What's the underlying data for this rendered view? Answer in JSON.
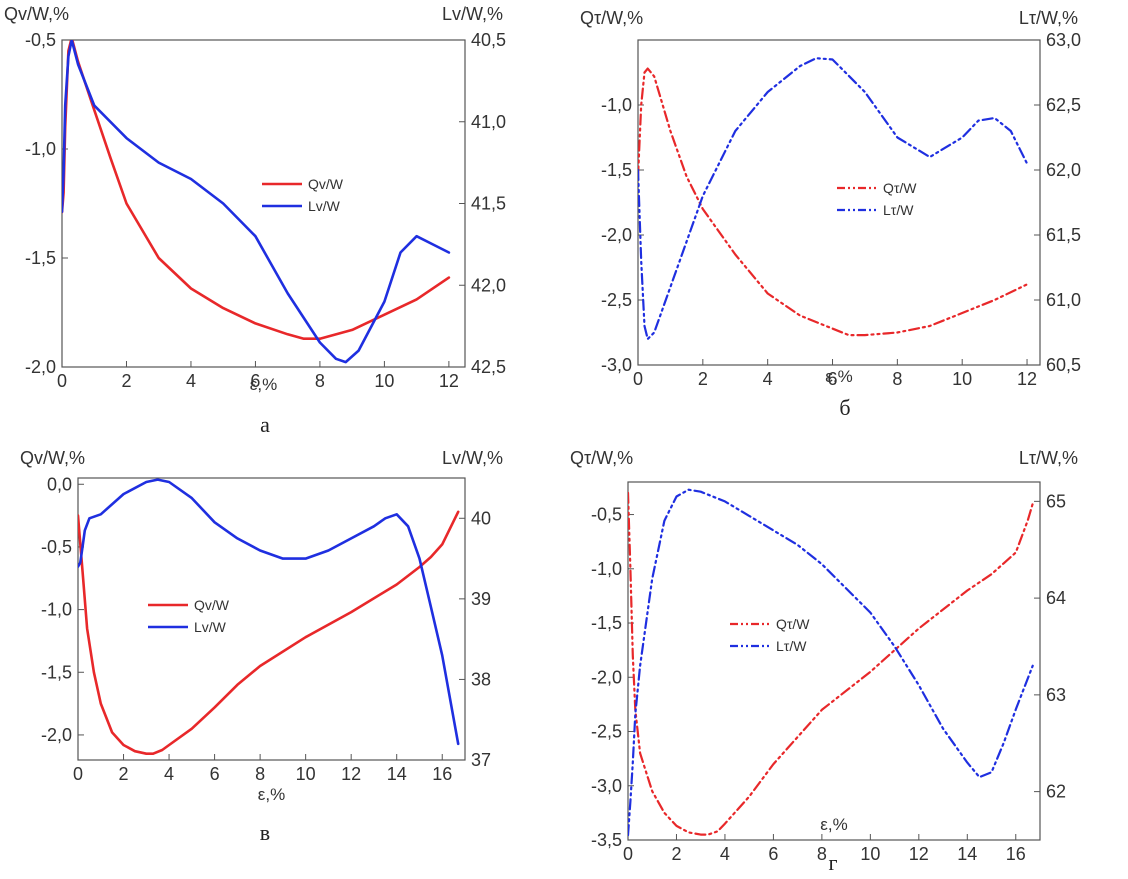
{
  "chart_data": [
    {
      "type": "line",
      "panel_label": "а",
      "xlabel": "ε,%",
      "ylabel_left": "Qv/W,%",
      "ylabel_right": "Lv/W,%",
      "xlim": [
        0,
        12.5
      ],
      "ylim_left": [
        -2.0,
        -0.5
      ],
      "ylim_right": [
        42.5,
        40.5
      ],
      "x_ticks": [
        0,
        2,
        4,
        6,
        8,
        10,
        12
      ],
      "x_tick_labels": [
        "0",
        "2",
        "4",
        "6",
        "8",
        "10",
        "12"
      ],
      "y_left_ticks": [
        -0.5,
        -1.0,
        -1.5,
        -2.0
      ],
      "y_left_tick_labels": [
        "-0,5",
        "-1,0",
        "-1,5",
        "-2,0"
      ],
      "y_right_ticks": [
        40.5,
        41.0,
        41.5,
        42.0,
        42.5
      ],
      "y_right_tick_labels": [
        "40,5",
        "41,0",
        "41,5",
        "42,0",
        "42,5"
      ],
      "legend_position": "center",
      "series": [
        {
          "name": "Qv/W",
          "axis": "left",
          "color": "#e8282a",
          "style": "solid",
          "x": [
            0.0,
            0.05,
            0.1,
            0.2,
            0.3,
            0.5,
            1,
            1.5,
            2,
            3,
            4,
            5,
            6,
            7,
            7.5,
            8,
            9,
            10,
            11,
            12
          ],
          "y": [
            -1.29,
            -1.2,
            -0.9,
            -0.55,
            -0.49,
            -0.6,
            -0.82,
            -1.04,
            -1.25,
            -1.5,
            -1.64,
            -1.73,
            -1.8,
            -1.85,
            -1.87,
            -1.87,
            -1.83,
            -1.76,
            -1.69,
            -1.59
          ]
        },
        {
          "name": "Lv/W",
          "axis": "right",
          "color": "#1f2fe0",
          "style": "solid",
          "x": [
            0.0,
            0.05,
            0.1,
            0.2,
            0.3,
            0.5,
            1,
            2,
            3,
            4,
            5,
            6,
            7,
            8,
            8.5,
            8.8,
            9.2,
            10,
            10.5,
            11,
            11.5,
            12
          ],
          "y": [
            41.55,
            41.3,
            40.9,
            40.6,
            40.5,
            40.65,
            40.9,
            41.1,
            41.25,
            41.35,
            41.5,
            41.7,
            42.05,
            42.35,
            42.45,
            42.47,
            42.4,
            42.1,
            41.8,
            41.7,
            41.75,
            41.8
          ]
        }
      ]
    },
    {
      "type": "line",
      "panel_label": "б",
      "xlabel": "ε,%",
      "ylabel_left": "Qτ/W,%",
      "ylabel_right": "Lτ/W,%",
      "xlim": [
        0,
        12.4
      ],
      "ylim_left": [
        -3.0,
        -0.5
      ],
      "ylim_right": [
        60.5,
        63.0
      ],
      "x_ticks": [
        0,
        2,
        4,
        6,
        8,
        10,
        12
      ],
      "x_tick_labels": [
        "0",
        "2",
        "4",
        "6",
        "8",
        "10",
        "12"
      ],
      "y_left_ticks": [
        -1.0,
        -1.5,
        -2.0,
        -2.5,
        -3.0
      ],
      "y_left_tick_labels": [
        "-1,0",
        "-1,5",
        "-2,0",
        "-2,5",
        "-3,0"
      ],
      "y_right_ticks": [
        60.5,
        61.0,
        61.5,
        62.0,
        62.5,
        63.0
      ],
      "y_right_tick_labels": [
        "60,5",
        "61,0",
        "61,5",
        "62,0",
        "62,5",
        "63,0"
      ],
      "legend_position": "center",
      "series": [
        {
          "name": "Qτ/W",
          "axis": "left",
          "color": "#e8282a",
          "style": "dash-dot-dot",
          "x": [
            0.0,
            0.1,
            0.2,
            0.3,
            0.5,
            1,
            1.5,
            2,
            3,
            4,
            5,
            6,
            6.5,
            7,
            8,
            9,
            10,
            11,
            12
          ],
          "y": [
            -1.55,
            -1.0,
            -0.75,
            -0.72,
            -0.78,
            -1.2,
            -1.55,
            -1.8,
            -2.15,
            -2.45,
            -2.62,
            -2.72,
            -2.77,
            -2.77,
            -2.75,
            -2.7,
            -2.6,
            -2.5,
            -2.38
          ]
        },
        {
          "name": "Lτ/W",
          "axis": "right",
          "color": "#1f2fe0",
          "style": "dash-dot-dot",
          "x": [
            0.0,
            0.1,
            0.2,
            0.3,
            0.5,
            1,
            2,
            3,
            4,
            5,
            5.5,
            6,
            7,
            8,
            9,
            10,
            10.5,
            11,
            11.5,
            12
          ],
          "y": [
            62.0,
            61.3,
            60.8,
            60.7,
            60.75,
            61.1,
            61.8,
            62.3,
            62.6,
            62.8,
            62.86,
            62.85,
            62.6,
            62.25,
            62.1,
            62.25,
            62.38,
            62.4,
            62.3,
            62.05
          ]
        }
      ]
    },
    {
      "type": "line",
      "panel_label": "в",
      "xlabel": "ε,%",
      "ylabel_left": "Qv/W,%",
      "ylabel_right": "Lv/W,%",
      "xlim": [
        0,
        17
      ],
      "ylim_left": [
        -2.2,
        0.05
      ],
      "ylim_right": [
        37.0,
        40.5
      ],
      "x_ticks": [
        0,
        2,
        4,
        6,
        8,
        10,
        12,
        14,
        16
      ],
      "x_tick_labels": [
        "0",
        "2",
        "4",
        "6",
        "8",
        "10",
        "12",
        "14",
        "16"
      ],
      "y_left_ticks": [
        0.0,
        -0.5,
        -1.0,
        -1.5,
        -2.0
      ],
      "y_left_tick_labels": [
        "0,0",
        "-0,5",
        "-1,0",
        "-1,5",
        "-2,0"
      ],
      "y_right_ticks": [
        40,
        39,
        38,
        37
      ],
      "y_right_tick_labels": [
        "40",
        "39",
        "38",
        "37"
      ],
      "legend_position": "center-left",
      "series": [
        {
          "name": "Qv/W",
          "axis": "left",
          "color": "#e8282a",
          "style": "solid",
          "x": [
            0.0,
            0.2,
            0.4,
            0.7,
            1,
            1.5,
            2,
            2.5,
            3,
            3.3,
            3.7,
            4,
            5,
            6,
            7,
            8,
            10,
            12,
            14,
            15,
            15.5,
            16,
            16.7
          ],
          "y": [
            -0.25,
            -0.7,
            -1.15,
            -1.5,
            -1.75,
            -1.98,
            -2.08,
            -2.13,
            -2.15,
            -2.15,
            -2.12,
            -2.08,
            -1.95,
            -1.78,
            -1.6,
            -1.45,
            -1.22,
            -1.02,
            -0.8,
            -0.66,
            -0.58,
            -0.48,
            -0.22
          ]
        },
        {
          "name": "Lv/W",
          "axis": "right",
          "color": "#1f2fe0",
          "style": "solid",
          "x": [
            0.0,
            0.1,
            0.2,
            0.3,
            0.5,
            1,
            2,
            3,
            3.5,
            4,
            5,
            6,
            7,
            8,
            9,
            10,
            11,
            12,
            13,
            13.5,
            14,
            14.5,
            15,
            15.5,
            16,
            16.7
          ],
          "y": [
            39.4,
            39.45,
            39.65,
            39.85,
            40.0,
            40.05,
            40.3,
            40.45,
            40.48,
            40.45,
            40.25,
            39.95,
            39.75,
            39.6,
            39.5,
            39.5,
            39.6,
            39.75,
            39.9,
            40.0,
            40.05,
            39.9,
            39.5,
            38.9,
            38.3,
            37.2
          ]
        }
      ]
    },
    {
      "type": "line",
      "panel_label": "г",
      "xlabel": "ε,%",
      "ylabel_left": "Qτ/W,%",
      "ylabel_right": "Lτ/W,%",
      "xlim": [
        0,
        17
      ],
      "ylim_left": [
        -3.5,
        -0.2
      ],
      "ylim_right": [
        61.5,
        65.2
      ],
      "x_ticks": [
        0,
        2,
        4,
        6,
        8,
        10,
        12,
        14,
        16
      ],
      "x_tick_labels": [
        "0",
        "2",
        "4",
        "6",
        "8",
        "10",
        "12",
        "14",
        "16"
      ],
      "y_left_ticks": [
        -0.5,
        -1.0,
        -1.5,
        -2.0,
        -2.5,
        -3.0,
        -3.5
      ],
      "y_left_tick_labels": [
        "-0,5",
        "-1,0",
        "-1,5",
        "-2,0",
        "-2,5",
        "-3,0",
        "-3,5"
      ],
      "y_right_ticks": [
        65,
        64,
        63,
        62
      ],
      "y_right_tick_labels": [
        "65",
        "64",
        "63",
        "62"
      ],
      "legend_position": "center",
      "series": [
        {
          "name": "Qτ/W",
          "axis": "left",
          "color": "#e8282a",
          "style": "dash-dot-dot",
          "x": [
            0.0,
            0.1,
            0.2,
            0.3,
            0.5,
            1,
            1.5,
            2,
            2.5,
            3,
            3.3,
            3.7,
            4,
            5,
            6,
            8,
            10,
            12,
            14,
            15,
            15.5,
            16,
            16.5,
            16.7
          ],
          "y": [
            -0.3,
            -1.0,
            -1.8,
            -2.3,
            -2.7,
            -3.05,
            -3.25,
            -3.37,
            -3.43,
            -3.45,
            -3.45,
            -3.42,
            -3.35,
            -3.1,
            -2.8,
            -2.3,
            -1.95,
            -1.55,
            -1.2,
            -1.05,
            -0.95,
            -0.85,
            -0.55,
            -0.4
          ]
        },
        {
          "name": "Lτ/W",
          "axis": "right",
          "color": "#1f2fe0",
          "style": "dash-dot-dot",
          "x": [
            0.0,
            0.1,
            0.2,
            0.3,
            0.5,
            1,
            1.5,
            2,
            2.5,
            3,
            4,
            5,
            6,
            7,
            8,
            9,
            10,
            11,
            12,
            13,
            14,
            14.5,
            15,
            15.5,
            16,
            16.7
          ],
          "y": [
            61.55,
            61.9,
            62.3,
            62.8,
            63.3,
            64.2,
            64.8,
            65.05,
            65.12,
            65.1,
            65.0,
            64.85,
            64.7,
            64.55,
            64.35,
            64.1,
            63.85,
            63.5,
            63.1,
            62.65,
            62.3,
            62.15,
            62.2,
            62.5,
            62.85,
            63.3
          ]
        }
      ]
    }
  ]
}
